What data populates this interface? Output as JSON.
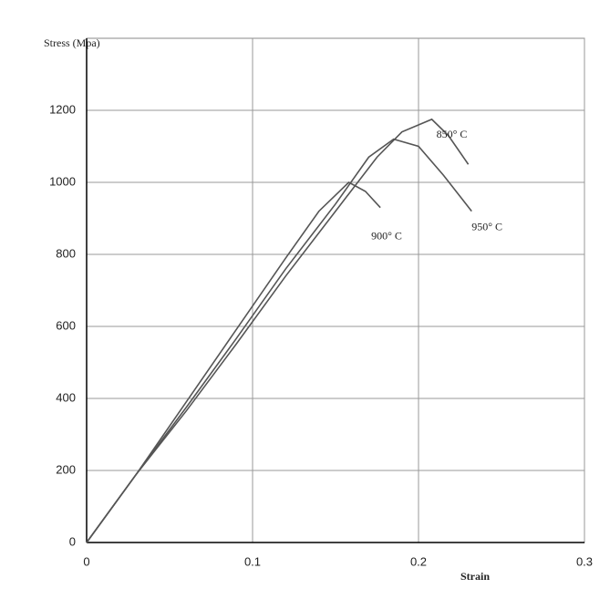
{
  "chart_data": {
    "type": "line",
    "y_label": "Stress (Mpa)",
    "x_label": "Strain",
    "xlim": [
      0,
      0.3
    ],
    "xticks": [
      0,
      0.1,
      0.2,
      0.3
    ],
    "ylim": [
      0,
      1400
    ],
    "yticks": [
      0,
      200,
      400,
      600,
      800,
      1000,
      1200
    ],
    "grid": true,
    "series": [
      {
        "name": "850° C",
        "color": "#555555",
        "x": [
          0,
          0.03,
          0.06,
          0.09,
          0.12,
          0.15,
          0.175,
          0.19,
          0.208,
          0.218,
          0.23
        ],
        "values": [
          0,
          190,
          365,
          550,
          740,
          920,
          1070,
          1140,
          1175,
          1130,
          1050
        ]
      },
      {
        "name": "900° C",
        "color": "#555555",
        "x": [
          0,
          0.03,
          0.06,
          0.09,
          0.12,
          0.14,
          0.158,
          0.168,
          0.177
        ],
        "values": [
          0,
          190,
          390,
          590,
          790,
          920,
          1000,
          975,
          930
        ]
      },
      {
        "name": "950° C",
        "color": "#555555",
        "x": [
          0,
          0.03,
          0.06,
          0.09,
          0.12,
          0.15,
          0.17,
          0.185,
          0.2,
          0.215,
          0.232
        ],
        "values": [
          0,
          190,
          375,
          565,
          760,
          940,
          1070,
          1120,
          1100,
          1020,
          920
        ]
      }
    ]
  }
}
